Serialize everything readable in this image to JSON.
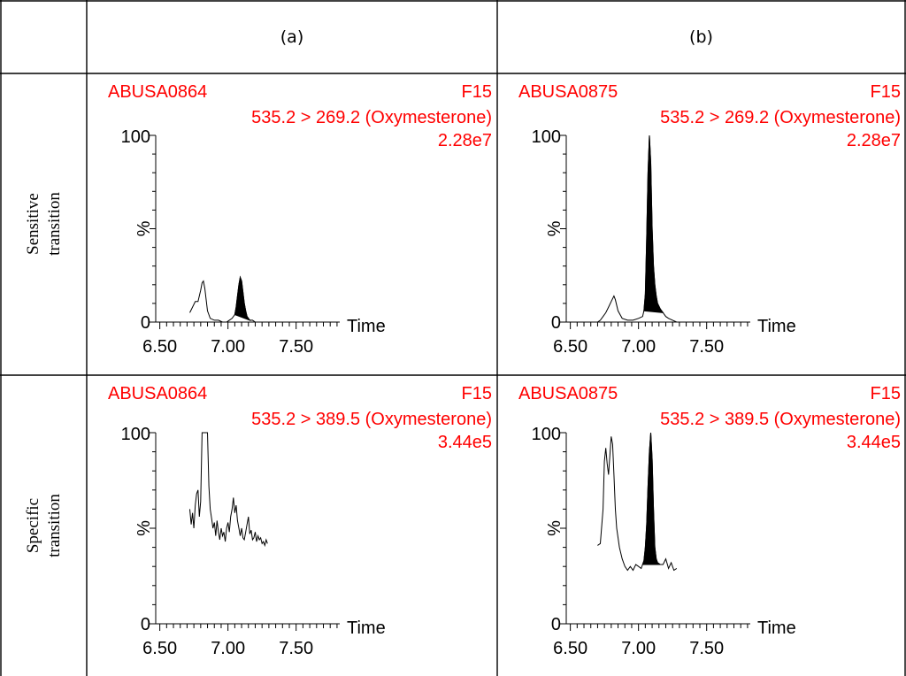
{
  "table": {
    "col_headers": [
      "(a)",
      "(b)"
    ],
    "row_labels": [
      [
        "Sensitive",
        "transition"
      ],
      [
        "Specific",
        "transition"
      ]
    ]
  },
  "colors": {
    "annotation": "#ff0000",
    "trace": "#000000"
  },
  "chart_data": [
    {
      "type": "line",
      "sample": "ABUSA0864",
      "function": "F15",
      "transition": "535.2 > 269.2 (Oxymesterone)",
      "intensity": "2.28e7",
      "ylabel": "%",
      "xlabel": "Time",
      "ytick_labels": [
        "0",
        "100"
      ],
      "xtick_labels": [
        "6.50",
        "7.00",
        "7.50"
      ],
      "xlim": [
        6.47,
        7.82
      ],
      "ylim": [
        0,
        100
      ],
      "filled_peak": [
        7.04,
        7.16
      ],
      "series": [
        {
          "x": [
            6.72,
            6.74,
            6.76,
            6.78,
            6.8,
            6.81,
            6.82,
            6.83,
            6.85,
            6.87,
            6.9,
            6.93,
            6.96,
            6.99,
            7.01,
            7.03,
            7.05,
            7.06,
            7.07,
            7.08,
            7.09,
            7.1,
            7.11,
            7.12,
            7.13,
            7.14,
            7.16,
            7.18,
            7.2,
            7.22,
            7.25,
            7.28
          ],
          "y": [
            5,
            8,
            11,
            11,
            17,
            21,
            22,
            18,
            6,
            2,
            1,
            1,
            0,
            0,
            1,
            2,
            4,
            8,
            14,
            20,
            24,
            22,
            16,
            10,
            6,
            3,
            1,
            1,
            0,
            0,
            0,
            0
          ]
        }
      ]
    },
    {
      "type": "line",
      "sample": "ABUSA0875",
      "function": "F15",
      "transition": "535.2 > 269.2 (Oxymesterone)",
      "intensity": "2.28e7",
      "ylabel": "%",
      "xlabel": "Time",
      "ytick_labels": [
        "0",
        "100"
      ],
      "xtick_labels": [
        "6.50",
        "7.00",
        "7.50"
      ],
      "xlim": [
        6.47,
        7.82
      ],
      "ylim": [
        0,
        100
      ],
      "filled_peak": [
        7.04,
        7.18
      ],
      "series": [
        {
          "x": [
            6.7,
            6.72,
            6.74,
            6.76,
            6.78,
            6.8,
            6.82,
            6.83,
            6.85,
            6.88,
            6.92,
            6.96,
            7.0,
            7.03,
            7.04,
            7.05,
            7.06,
            7.07,
            7.08,
            7.09,
            7.1,
            7.11,
            7.12,
            7.13,
            7.14,
            7.16,
            7.18,
            7.2,
            7.22,
            7.25,
            7.28
          ],
          "y": [
            0,
            1,
            3,
            5,
            8,
            11,
            14,
            12,
            6,
            2,
            1,
            1,
            2,
            3,
            6,
            15,
            45,
            80,
            100,
            85,
            50,
            30,
            20,
            14,
            10,
            7,
            5,
            3,
            2,
            1,
            0
          ]
        }
      ]
    },
    {
      "type": "line",
      "sample": "ABUSA0864",
      "function": "F15",
      "transition": "535.2 > 389.5 (Oxymesterone)",
      "intensity": "3.44e5",
      "ylabel": "%",
      "xlabel": "Time",
      "ytick_labels": [
        "0",
        "100"
      ],
      "xtick_labels": [
        "6.50",
        "7.00",
        "7.50"
      ],
      "xlim": [
        6.47,
        7.82
      ],
      "ylim": [
        0,
        100
      ],
      "series": [
        {
          "x": [
            6.72,
            6.73,
            6.74,
            6.75,
            6.76,
            6.77,
            6.78,
            6.79,
            6.8,
            6.81,
            6.82,
            6.83,
            6.84,
            6.85,
            6.86,
            6.87,
            6.88,
            6.89,
            6.9,
            6.91,
            6.92,
            6.93,
            6.94,
            6.95,
            6.96,
            6.97,
            6.98,
            6.99,
            7.0,
            7.01,
            7.02,
            7.03,
            7.04,
            7.05,
            7.06,
            7.07,
            7.08,
            7.09,
            7.1,
            7.11,
            7.12,
            7.13,
            7.14,
            7.15,
            7.16,
            7.17,
            7.18,
            7.19,
            7.2,
            7.21,
            7.22,
            7.23,
            7.24,
            7.25,
            7.26,
            7.27,
            7.28,
            7.29
          ],
          "y": [
            60,
            52,
            58,
            50,
            62,
            68,
            70,
            56,
            64,
            100,
            100,
            100,
            100,
            100,
            72,
            60,
            55,
            50,
            53,
            46,
            54,
            48,
            44,
            50,
            46,
            48,
            43,
            50,
            53,
            48,
            56,
            60,
            66,
            58,
            62,
            54,
            50,
            46,
            50,
            45,
            44,
            48,
            52,
            56,
            47,
            49,
            44,
            45,
            48,
            43,
            46,
            44,
            45,
            42,
            43,
            41,
            44,
            42
          ]
        }
      ]
    },
    {
      "type": "line",
      "sample": "ABUSA0875",
      "function": "F15",
      "transition": "535.2 > 389.5 (Oxymesterone)",
      "intensity": "3.44e5",
      "ylabel": "%",
      "xlabel": "Time",
      "ytick_labels": [
        "0",
        "100"
      ],
      "xtick_labels": [
        "6.50",
        "7.00",
        "7.50"
      ],
      "xlim": [
        6.47,
        7.82
      ],
      "ylim": [
        0,
        100
      ],
      "filled_peak": [
        7.03,
        7.17
      ],
      "series": [
        {
          "x": [
            6.7,
            6.72,
            6.74,
            6.75,
            6.76,
            6.77,
            6.78,
            6.79,
            6.8,
            6.81,
            6.82,
            6.83,
            6.84,
            6.86,
            6.88,
            6.9,
            6.92,
            6.94,
            6.96,
            6.98,
            7.0,
            7.02,
            7.03,
            7.04,
            7.05,
            7.06,
            7.07,
            7.08,
            7.09,
            7.1,
            7.11,
            7.12,
            7.13,
            7.14,
            7.16,
            7.18,
            7.2,
            7.22,
            7.24,
            7.26,
            7.28
          ],
          "y": [
            41,
            42,
            60,
            85,
            92,
            84,
            78,
            88,
            98,
            94,
            78,
            60,
            50,
            40,
            34,
            30,
            28,
            30,
            28,
            31,
            30,
            29,
            31,
            33,
            40,
            52,
            72,
            90,
            100,
            86,
            60,
            40,
            34,
            32,
            31,
            31,
            34,
            29,
            32,
            28,
            29
          ]
        }
      ]
    }
  ]
}
